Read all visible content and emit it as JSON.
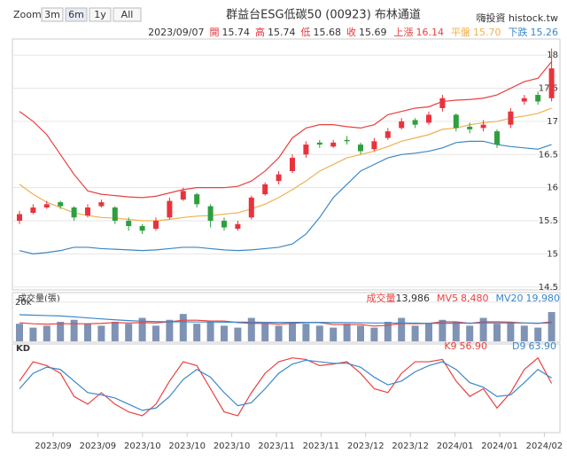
{
  "toolbar": {
    "zoom_label": "Zoom",
    "buttons": [
      "3m",
      "6m",
      "1y",
      "All"
    ],
    "active": 1,
    "disabled": 2
  },
  "brand": "嗨投資 histock.tw",
  "x_axis_labels": [
    "2023/09",
    "2023/09",
    "2023/10",
    "2023/10",
    "2023/10",
    "2023/11",
    "2023/11",
    "2023/12",
    "2023/12",
    "2024/01",
    "2024/01",
    "2024/02"
  ],
  "chart_data": [
    {
      "type": "candlestick",
      "title": "群益台ESG低碳50 (00923) 布林通道",
      "readout": {
        "date": "2023/09/07",
        "items": [
          {
            "label": "開",
            "text": "15.74"
          },
          {
            "label": "高",
            "text": "15.74"
          },
          {
            "label": "低",
            "text": "15.68"
          },
          {
            "label": "收",
            "text": "15.69"
          }
        ]
      },
      "up_color": "#e8333c",
      "down_color": "#2f9e3f",
      "open": [
        15.5,
        15.62,
        15.7,
        15.78,
        15.7,
        15.58,
        15.72,
        15.7,
        15.5,
        15.42,
        15.38,
        15.55,
        15.82,
        15.9,
        15.72,
        15.5,
        15.38,
        15.55,
        15.9,
        16.1,
        16.25,
        16.5,
        16.68,
        16.62,
        16.72,
        16.65,
        16.58,
        16.75,
        16.9,
        17.02,
        16.98,
        17.2,
        17.1,
        16.92,
        16.9,
        16.85,
        16.95,
        17.3,
        17.4,
        17.35
      ],
      "high": [
        15.65,
        15.75,
        15.8,
        15.8,
        15.72,
        15.75,
        15.82,
        15.72,
        15.55,
        15.45,
        15.55,
        15.85,
        16.0,
        15.92,
        15.75,
        15.55,
        15.5,
        15.88,
        16.08,
        16.25,
        16.5,
        16.7,
        16.72,
        16.72,
        16.78,
        16.68,
        16.75,
        16.9,
        17.05,
        17.05,
        17.15,
        17.4,
        17.12,
        16.98,
        17.02,
        16.88,
        17.2,
        17.4,
        17.45,
        18.1
      ],
      "low": [
        15.45,
        15.6,
        15.68,
        15.68,
        15.5,
        15.55,
        15.7,
        15.45,
        15.35,
        15.3,
        15.35,
        15.52,
        15.8,
        15.7,
        15.4,
        15.35,
        15.35,
        15.52,
        15.88,
        16.05,
        16.22,
        16.45,
        16.6,
        16.6,
        16.65,
        16.5,
        16.55,
        16.72,
        16.88,
        16.9,
        16.95,
        17.15,
        16.85,
        16.82,
        16.85,
        16.6,
        16.9,
        17.25,
        17.25,
        17.3
      ],
      "close": [
        15.6,
        15.7,
        15.75,
        15.72,
        15.55,
        15.7,
        15.78,
        15.5,
        15.42,
        15.35,
        15.5,
        15.8,
        15.95,
        15.75,
        15.5,
        15.4,
        15.45,
        15.85,
        16.05,
        16.2,
        16.45,
        16.65,
        16.65,
        16.68,
        16.7,
        16.55,
        16.7,
        16.85,
        17.0,
        16.95,
        17.1,
        17.35,
        16.9,
        16.88,
        16.95,
        16.65,
        17.15,
        17.35,
        17.3,
        17.8
      ],
      "series": [
        {
          "name": "上漲",
          "readout": "16.14",
          "color": "#e8413f",
          "values": [
            17.15,
            17.0,
            16.8,
            16.5,
            16.2,
            15.95,
            15.9,
            15.88,
            15.86,
            15.85,
            15.87,
            15.92,
            15.97,
            16.0,
            16.0,
            16.0,
            16.02,
            16.1,
            16.25,
            16.45,
            16.75,
            16.9,
            16.95,
            16.95,
            16.92,
            16.9,
            16.95,
            17.1,
            17.15,
            17.2,
            17.22,
            17.3,
            17.32,
            17.33,
            17.35,
            17.4,
            17.5,
            17.6,
            17.65,
            17.9
          ]
        },
        {
          "name": "平盤",
          "readout": "15.70",
          "color": "#f0b050",
          "values": [
            16.05,
            15.9,
            15.78,
            15.7,
            15.62,
            15.58,
            15.55,
            15.54,
            15.52,
            15.5,
            15.5,
            15.52,
            15.55,
            15.57,
            15.58,
            15.6,
            15.62,
            15.68,
            15.75,
            15.85,
            15.97,
            16.1,
            16.25,
            16.35,
            16.45,
            16.5,
            16.55,
            16.62,
            16.7,
            16.75,
            16.8,
            16.88,
            16.9,
            16.95,
            16.98,
            17.0,
            17.05,
            17.08,
            17.12,
            17.2
          ]
        },
        {
          "name": "下跌",
          "readout": "15.26",
          "color": "#3a87c8",
          "values": [
            15.05,
            15.0,
            15.02,
            15.05,
            15.1,
            15.1,
            15.08,
            15.07,
            15.06,
            15.05,
            15.06,
            15.08,
            15.1,
            15.1,
            15.08,
            15.06,
            15.05,
            15.06,
            15.08,
            15.1,
            15.15,
            15.3,
            15.55,
            15.85,
            16.05,
            16.25,
            16.35,
            16.45,
            16.5,
            16.52,
            16.55,
            16.6,
            16.68,
            16.7,
            16.7,
            16.65,
            16.62,
            16.6,
            16.58,
            16.65
          ]
        }
      ],
      "ylim": [
        14.47,
        18.23
      ],
      "yticks": [
        14.5,
        15,
        15.5,
        16,
        16.5,
        17,
        17.5,
        18
      ],
      "grid": true
    },
    {
      "type": "volume",
      "title": "成交量(張)",
      "label": "成交量",
      "readout": "13,986",
      "color": "#7f93b5",
      "values": [
        9000,
        7000,
        8000,
        10000,
        11000,
        9000,
        8000,
        10000,
        9000,
        12000,
        8000,
        11000,
        14000,
        9000,
        10000,
        8000,
        7000,
        12000,
        9000,
        8000,
        10000,
        9000,
        8000,
        7000,
        9000,
        8000,
        7000,
        10000,
        12000,
        8000,
        9000,
        11000,
        10000,
        8000,
        12000,
        9000,
        10000,
        8000,
        7000,
        15000
      ],
      "series": [
        {
          "name": "MV5",
          "readout": "8,480",
          "color": "#e8413f",
          "values": [
            9500,
            9000,
            8800,
            9000,
            9000,
            9000,
            9200,
            9600,
            9400,
            9600,
            9400,
            10000,
            10800,
            10800,
            10400,
            10400,
            9600,
            9200,
            9200,
            8800,
            9200,
            9600,
            9600,
            8600,
            8600,
            8600,
            7800,
            8200,
            9200,
            9000,
            9200,
            10000,
            10000,
            9200,
            10000,
            10000,
            9800,
            9400,
            9200,
            10000
          ]
        },
        {
          "name": "MV20",
          "readout": "19,980",
          "color": "#3a87c8",
          "values": [
            13600,
            13400,
            13200,
            13000,
            12500,
            12000,
            11500,
            11000,
            10600,
            10300,
            10100,
            10000,
            10000,
            9900,
            9900,
            9800,
            9800,
            9800,
            9700,
            9700,
            9700,
            9700,
            9700,
            9600,
            9600,
            9500,
            9400,
            9400,
            9400,
            9300,
            9200,
            9200,
            9300,
            9300,
            9400,
            9400,
            9400,
            9400,
            9300,
            9400
          ]
        }
      ],
      "ylim": [
        0,
        23600
      ],
      "yticks": [
        {
          "value": 20000,
          "label": "20k"
        }
      ]
    },
    {
      "type": "kd",
      "title": "KD",
      "series": [
        {
          "name": "K9",
          "readout": "56.90",
          "color": "#e8413f",
          "values": [
            60,
            85,
            80,
            70,
            40,
            30,
            45,
            30,
            20,
            15,
            30,
            60,
            85,
            80,
            50,
            20,
            15,
            45,
            70,
            85,
            90,
            88,
            80,
            82,
            85,
            70,
            50,
            45,
            70,
            85,
            85,
            88,
            60,
            40,
            50,
            25,
            45,
            75,
            90,
            56.9
          ]
        },
        {
          "name": "D9",
          "readout": "63.90",
          "color": "#3a87c8",
          "values": [
            50,
            70,
            78,
            75,
            60,
            45,
            42,
            38,
            30,
            22,
            25,
            40,
            62,
            75,
            65,
            45,
            28,
            32,
            50,
            70,
            82,
            87,
            85,
            83,
            83,
            78,
            65,
            55,
            60,
            72,
            80,
            85,
            75,
            58,
            52,
            40,
            42,
            58,
            75,
            63.9
          ]
        }
      ],
      "ylim": [
        0,
        100
      ]
    }
  ]
}
